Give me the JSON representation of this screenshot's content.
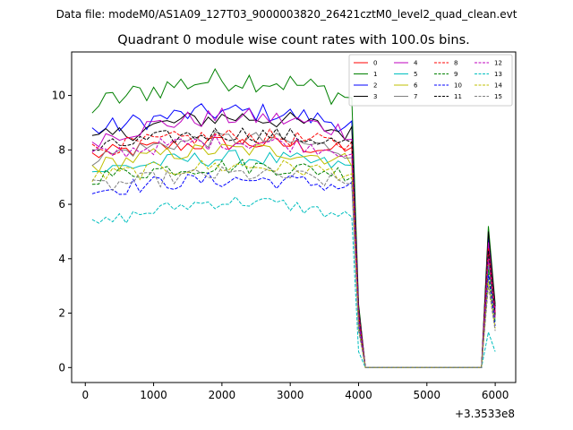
{
  "chart_data": {
    "type": "line",
    "suptitle": "Data file: modeM0/AS1A09_127T03_9000003820_26421cztM0_level2_quad_clean.evt",
    "title": "Quadrant 0 module wise count rates with 100.0s bins.",
    "xlabel": "",
    "ylabel": "",
    "x_offset_label": "+3.3533e8",
    "xlim": [
      -200,
      6300
    ],
    "ylim": [
      -0.55,
      11.6
    ],
    "x_ticks": [
      0,
      1000,
      2000,
      3000,
      4000,
      5000,
      6000
    ],
    "x_tick_labels": [
      "0",
      "1000",
      "2000",
      "3000",
      "4000",
      "5000",
      "6000"
    ],
    "y_ticks": [
      0,
      2,
      4,
      6,
      8,
      10
    ],
    "y_tick_labels": [
      "0",
      "2",
      "4",
      "6",
      "8",
      "10"
    ],
    "legend_position": "top-right",
    "legend_columns": 4,
    "series": [
      {
        "name": "0",
        "color": "#ff0000",
        "dash": "solid",
        "base": 7.8,
        "amp": 0.3,
        "ramp": 0.45,
        "peak": 4.5
      },
      {
        "name": "1",
        "color": "#008000",
        "dash": "solid",
        "base": 9.6,
        "amp": 0.45,
        "ramp": 1.0,
        "peak": 5.2
      },
      {
        "name": "2",
        "color": "#0000ff",
        "dash": "solid",
        "base": 8.7,
        "amp": 0.35,
        "ramp": 0.7,
        "peak": 4.8
      },
      {
        "name": "3",
        "color": "#000000",
        "dash": "solid",
        "base": 8.3,
        "amp": 0.35,
        "ramp": 0.9,
        "peak": 5.0
      },
      {
        "name": "4",
        "color": "#bf00bf",
        "dash": "solid",
        "base": 8.4,
        "amp": 0.35,
        "ramp": 0.8,
        "peak": 4.6
      },
      {
        "name": "5",
        "color": "#00bfbf",
        "dash": "solid",
        "base": 7.2,
        "amp": 0.3,
        "ramp": 0.5,
        "peak": 3.8
      },
      {
        "name": "6",
        "color": "#bfbf00",
        "dash": "solid",
        "base": 7.4,
        "amp": 0.3,
        "ramp": 0.6,
        "peak": 4.0
      },
      {
        "name": "7",
        "color": "#808080",
        "dash": "solid",
        "base": 7.7,
        "amp": 0.3,
        "ramp": 0.7,
        "peak": 4.2
      },
      {
        "name": "8",
        "color": "#ff0000",
        "dash": "dashed",
        "base": 8.0,
        "amp": 0.3,
        "ramp": 0.5,
        "peak": 4.4
      },
      {
        "name": "9",
        "color": "#008000",
        "dash": "dashed",
        "base": 7.0,
        "amp": 0.3,
        "ramp": 0.4,
        "peak": 3.6
      },
      {
        "name": "10",
        "color": "#0000ff",
        "dash": "dashed",
        "base": 6.5,
        "amp": 0.3,
        "ramp": 0.4,
        "peak": 3.4
      },
      {
        "name": "11",
        "color": "#000000",
        "dash": "dashed",
        "base": 8.0,
        "amp": 0.3,
        "ramp": 0.6,
        "peak": 4.3
      },
      {
        "name": "12",
        "color": "#bf00bf",
        "dash": "dashed",
        "base": 7.8,
        "amp": 0.3,
        "ramp": 0.5,
        "peak": 4.0
      },
      {
        "name": "13",
        "color": "#00bfbf",
        "dash": "dashed",
        "base": 5.2,
        "amp": 0.25,
        "ramp": 0.9,
        "peak": 1.3
      },
      {
        "name": "14",
        "color": "#bfbf00",
        "dash": "dashed",
        "base": 7.0,
        "amp": 0.3,
        "ramp": 0.4,
        "peak": 3.2
      },
      {
        "name": "15",
        "color": "#808080",
        "dash": "dashed",
        "base": 6.6,
        "amp": 0.3,
        "ramp": 0.5,
        "peak": 3.0
      }
    ],
    "x": [
      100,
      200,
      300,
      400,
      500,
      600,
      700,
      800,
      900,
      1000,
      1100,
      1200,
      1300,
      1400,
      1500,
      1600,
      1700,
      1800,
      1900,
      2000,
      2100,
      2200,
      2300,
      2400,
      2500,
      2600,
      2700,
      2800,
      2900,
      3000,
      3100,
      3200,
      3300,
      3400,
      3500,
      3600,
      3700,
      3800,
      3900,
      4000,
      4100,
      4200,
      4300,
      4400,
      4500,
      4600,
      4700,
      4800,
      4900,
      5000,
      5100,
      5200,
      5300,
      5400,
      5500,
      5600,
      5700,
      5800,
      5900,
      6000
    ],
    "active_until": 3900,
    "gap_start": 4100,
    "gap_end": 5800,
    "gap_value": 0
  }
}
